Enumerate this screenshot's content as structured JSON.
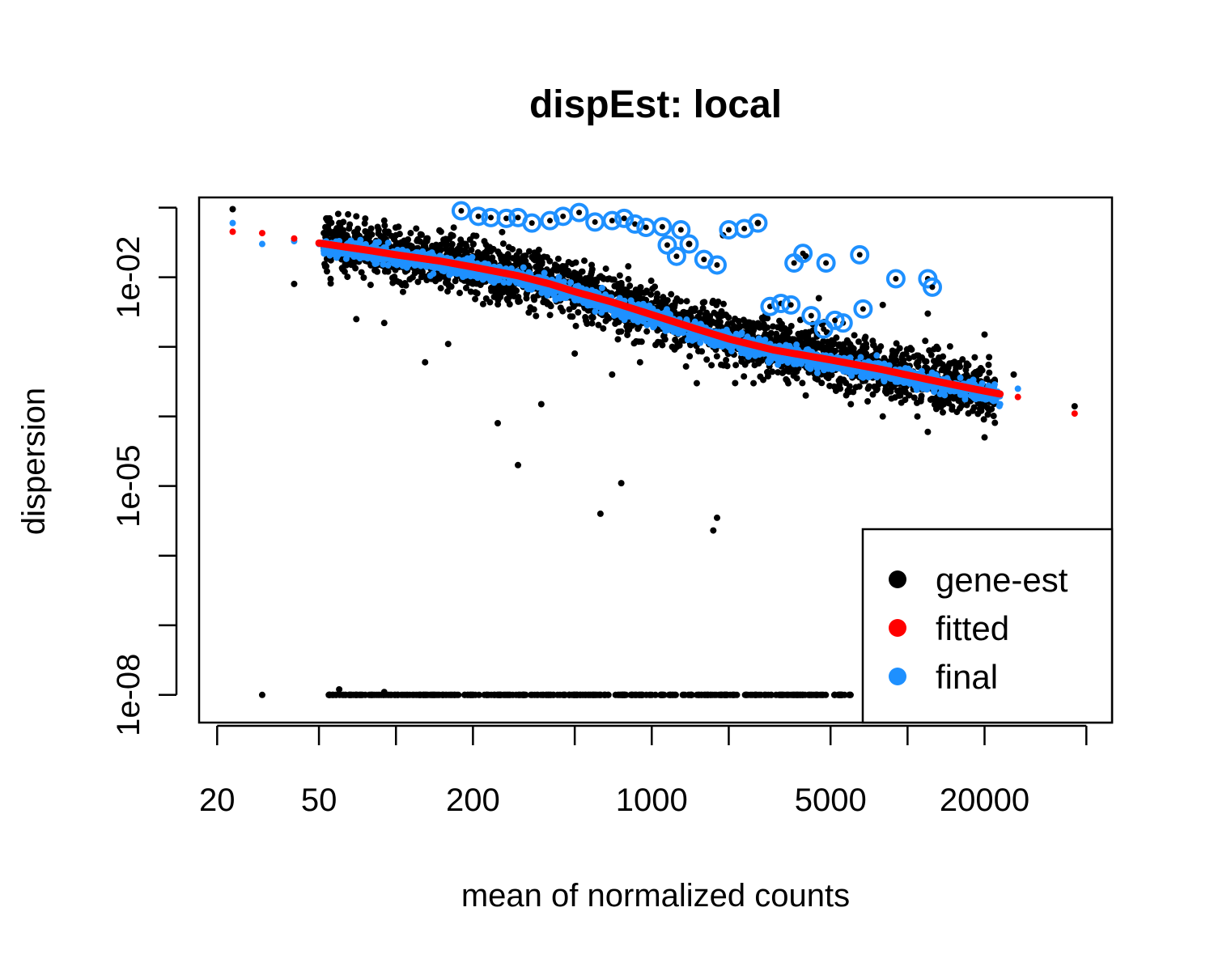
{
  "chart_data": {
    "type": "scatter",
    "title": "dispEst: local",
    "xlabel": "mean of normalized counts",
    "ylabel": "dispersion",
    "x_scale": "log",
    "y_scale": "log",
    "xlim": [
      17,
      63000
    ],
    "ylim": [
      4e-09,
      0.14
    ],
    "x_ticks": [
      20,
      50,
      100,
      200,
      500,
      1000,
      2000,
      5000,
      10000,
      20000,
      50000
    ],
    "x_tick_labels": [
      "20",
      "50",
      "200",
      "1000",
      "5000",
      "20000"
    ],
    "x_tick_label_values": [
      20,
      50,
      200,
      1000,
      5000,
      20000
    ],
    "y_ticks": [
      1e-08,
      1e-07,
      1e-06,
      1e-05,
      0.0001,
      0.001,
      0.01,
      0.1
    ],
    "y_tick_labels": [
      "1e-08",
      "1e-05",
      "1e-02"
    ],
    "y_tick_label_values": [
      1e-08,
      1e-05,
      0.01
    ],
    "grid": false,
    "legend_position": "bottom-right",
    "series": [
      {
        "name": "gene-est",
        "color": "#000000",
        "points": [
          [
            23,
            0.095
          ],
          [
            30,
            1e-08
          ],
          [
            40,
            0.008
          ],
          [
            55,
            0.07
          ],
          [
            60,
            0.06
          ],
          [
            65,
            0.08
          ],
          [
            70,
            0.075
          ],
          [
            80,
            0.05
          ],
          [
            90,
            0.065
          ],
          [
            100,
            0.04
          ],
          [
            120,
            0.05
          ],
          [
            150,
            0.045
          ],
          [
            70,
            0.0025
          ],
          [
            90,
            0.0022
          ],
          [
            130,
            0.0006
          ],
          [
            160,
            0.0011
          ],
          [
            250,
            8e-05
          ],
          [
            300,
            2e-05
          ],
          [
            500,
            0.0008
          ],
          [
            700,
            0.0004
          ],
          [
            900,
            0.0006
          ],
          [
            1500,
            0.0003
          ],
          [
            2500,
            0.0003
          ],
          [
            4000,
            0.0002
          ],
          [
            6000,
            0.00015
          ],
          [
            8000,
            0.0001
          ],
          [
            12000,
            6e-05
          ],
          [
            20000,
            5e-05
          ],
          [
            13000,
            0.001
          ],
          [
            20000,
            0.0015
          ],
          [
            26000,
            0.0004
          ],
          [
            45000,
            0.00014
          ],
          [
            2600,
            0.06
          ],
          [
            4000,
            0.02
          ],
          [
            4500,
            0.005
          ],
          [
            1400,
            0.03
          ],
          [
            1900,
            0.04
          ],
          [
            8000,
            0.004
          ],
          [
            12000,
            0.003
          ],
          [
            370,
            0.00015
          ],
          [
            630,
            4e-06
          ],
          [
            760,
            1.1e-05
          ],
          [
            1740,
            2.3e-06
          ],
          [
            1800,
            3.5e-06
          ],
          [
            55,
            1e-08
          ],
          [
            60,
            1.2e-08
          ],
          [
            90,
            1.1e-08
          ]
        ]
      },
      {
        "name": "fitted",
        "color": "#ff0000",
        "points": [
          [
            23,
            0.045
          ],
          [
            30,
            0.043
          ],
          [
            40,
            0.036
          ],
          [
            50,
            0.031
          ],
          [
            60,
            0.028
          ],
          [
            80,
            0.024
          ],
          [
            100,
            0.021
          ],
          [
            150,
            0.017
          ],
          [
            200,
            0.014
          ],
          [
            300,
            0.0105
          ],
          [
            400,
            0.008
          ],
          [
            500,
            0.0062
          ],
          [
            700,
            0.0044
          ],
          [
            1000,
            0.0029
          ],
          [
            1500,
            0.0018
          ],
          [
            2000,
            0.0013
          ],
          [
            3000,
            0.0009
          ],
          [
            5000,
            0.00065
          ],
          [
            8000,
            0.00047
          ],
          [
            12000,
            0.00034
          ],
          [
            18000,
            0.00025
          ],
          [
            23000,
            0.00021
          ],
          [
            27000,
            0.00019
          ],
          [
            45000,
            0.00011
          ]
        ]
      },
      {
        "name": "final",
        "color": "#1e90ff",
        "points": [
          [
            23,
            0.06
          ],
          [
            30,
            0.03
          ],
          [
            40,
            0.033
          ],
          [
            50,
            0.03
          ],
          [
            60,
            0.033
          ],
          [
            80,
            0.022
          ],
          [
            100,
            0.02
          ],
          [
            150,
            0.016
          ],
          [
            200,
            0.013
          ],
          [
            300,
            0.0095
          ],
          [
            500,
            0.0055
          ],
          [
            1000,
            0.0026
          ],
          [
            2000,
            0.0012
          ],
          [
            5000,
            0.0006
          ],
          [
            10000,
            0.0004
          ],
          [
            20000,
            0.00022
          ],
          [
            23000,
            0.00015
          ],
          [
            27000,
            0.00025
          ]
        ]
      }
    ],
    "outliers_circled": [
      [
        180,
        0.09
      ],
      [
        210,
        0.075
      ],
      [
        235,
        0.072
      ],
      [
        270,
        0.07
      ],
      [
        300,
        0.072
      ],
      [
        340,
        0.06
      ],
      [
        400,
        0.065
      ],
      [
        450,
        0.075
      ],
      [
        520,
        0.085
      ],
      [
        600,
        0.062
      ],
      [
        700,
        0.065
      ],
      [
        780,
        0.07
      ],
      [
        860,
        0.058
      ],
      [
        950,
        0.052
      ],
      [
        1100,
        0.053
      ],
      [
        1300,
        0.048
      ],
      [
        1600,
        0.018
      ],
      [
        1800,
        0.015
      ],
      [
        2000,
        0.048
      ],
      [
        2300,
        0.05
      ],
      [
        2600,
        0.06
      ],
      [
        2900,
        0.0038
      ],
      [
        3200,
        0.0042
      ],
      [
        3600,
        0.016
      ],
      [
        3900,
        0.022
      ],
      [
        4200,
        0.0028
      ],
      [
        4700,
        0.0018
      ],
      [
        5600,
        0.0022
      ],
      [
        6500,
        0.021
      ],
      [
        6700,
        0.0035
      ],
      [
        9000,
        0.0095
      ],
      [
        12000,
        0.0095
      ],
      [
        12500,
        0.0072
      ],
      [
        4800,
        0.016
      ],
      [
        5200,
        0.0024
      ],
      [
        3500,
        0.004
      ],
      [
        1150,
        0.029
      ],
      [
        1400,
        0.03
      ],
      [
        1250,
        0.02
      ]
    ],
    "legend": [
      {
        "label": "gene-est",
        "color": "#000000"
      },
      {
        "label": "fitted",
        "color": "#ff0000"
      },
      {
        "label": "final",
        "color": "#1e90ff"
      }
    ]
  }
}
